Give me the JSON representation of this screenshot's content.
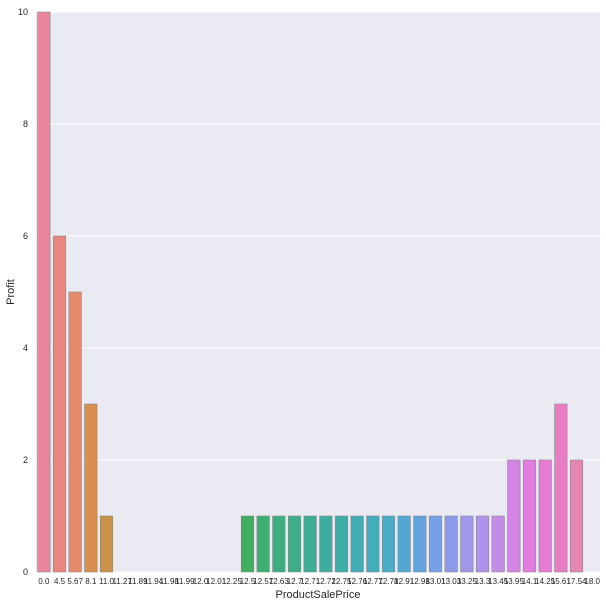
{
  "chart_data": {
    "type": "bar",
    "title": "",
    "xlabel": "ProductSalePrice",
    "ylabel": "Profit",
    "ylim": [
      0,
      10
    ],
    "yticks": [
      0,
      2,
      4,
      6,
      8,
      10
    ],
    "grid": true,
    "categories": [
      "0.0",
      "4.5",
      "5.67",
      "8.1",
      "11.0",
      "11.27",
      "11.89",
      "11.94",
      "11.98",
      "11.99",
      "12.0",
      "12.01",
      "12.25",
      "12.5",
      "12.57",
      "12.63",
      "12.7",
      "12.71",
      "12.72",
      "12.75",
      "12.76",
      "12.77",
      "12.78",
      "12.91",
      "12.98",
      "13.01",
      "13.03",
      "13.25",
      "13.3",
      "13.45",
      "13.95",
      "14.1",
      "14.25",
      "15.61",
      "17.54",
      "18.0"
    ],
    "tick_labels": [
      "0.0",
      "4.5",
      "5.67",
      "8.1",
      "11.0",
      "11.27",
      "11.89",
      "11.94",
      "11.98",
      "11.99",
      "12.0",
      "12.01",
      "12.25",
      "12.5",
      "12.57",
      "12.63",
      "12.7",
      "12.71",
      "12.72",
      "12.75",
      "12.76",
      "12.77",
      "12.78",
      "12.91",
      "12.98",
      "13.01",
      "13.03",
      "13.25",
      "13.3",
      "13.45",
      "13.95",
      "14.1",
      "14.25",
      "15.61",
      "17.54",
      "18.0"
    ],
    "values": [
      10,
      6,
      5,
      3,
      1,
      0,
      0,
      0,
      0,
      0,
      0,
      0,
      0,
      1,
      1,
      1,
      1,
      1,
      1,
      1,
      1,
      1,
      1,
      1,
      1,
      1,
      1,
      1,
      1,
      1,
      2,
      2,
      2,
      3,
      2,
      0
    ],
    "colors": [
      "#e8869b",
      "#e8867f",
      "#e68a6c",
      "#d98f4e",
      "#c99248",
      "#b89848",
      "#a99c49",
      "#9aa048",
      "#8ca448",
      "#7ba948",
      "#6aad4a",
      "#58b14d",
      "#47b350",
      "#3fae5f",
      "#3daf70",
      "#3daf7e",
      "#3cae89",
      "#3bad94",
      "#3cad9e",
      "#3dada8",
      "#3fadb3",
      "#43adbe",
      "#49abc9",
      "#52a8d4",
      "#62a4de",
      "#76a0e7",
      "#8b9be9",
      "#9e97ea",
      "#b192ea",
      "#c38ce9",
      "#d583e6",
      "#e37ce0",
      "#e87bd3",
      "#e87dc4",
      "#e884b4",
      "#e8879f"
    ],
    "value_tick_label_color": "#262626",
    "plot_background": "#eaeaf2"
  }
}
